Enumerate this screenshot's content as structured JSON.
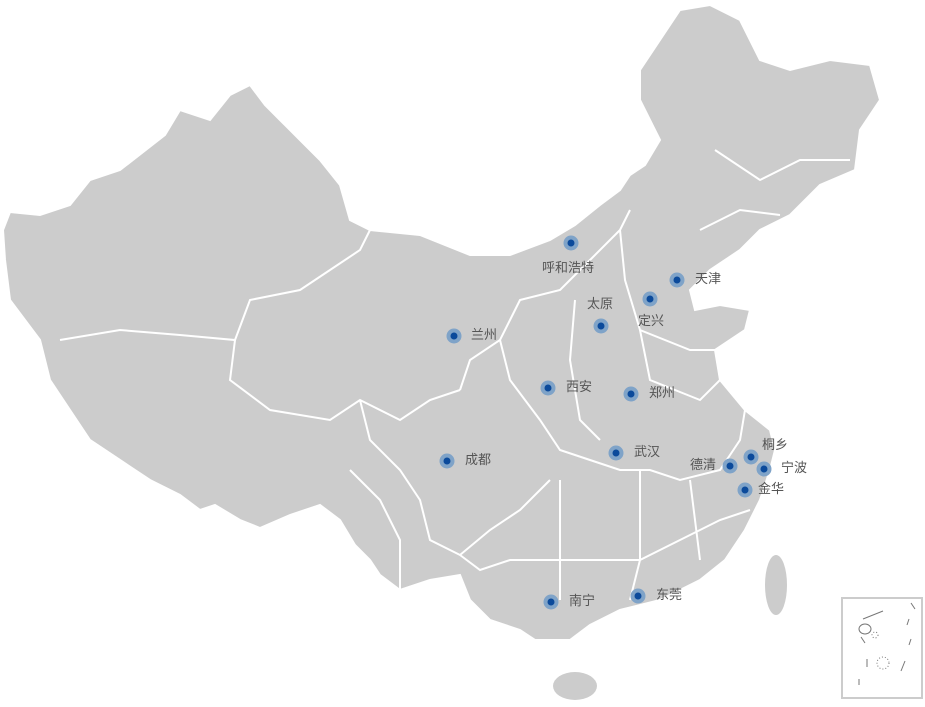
{
  "map": {
    "colors": {
      "land": "#cccccc",
      "border": "#ffffff",
      "marker_halo": "#7fa3c8",
      "marker_core": "#0b4a9b",
      "label": "#555555"
    },
    "cities": [
      {
        "name": "呼和浩特",
        "lng": 111.75,
        "lat": 40.84
      },
      {
        "name": "天津",
        "lng": 117.2,
        "lat": 39.13
      },
      {
        "name": "太原",
        "lng": 112.55,
        "lat": 37.87
      },
      {
        "name": "定兴",
        "lng": 115.8,
        "lat": 39.27
      },
      {
        "name": "兰州",
        "lng": 103.82,
        "lat": 36.06
      },
      {
        "name": "西安",
        "lng": 108.94,
        "lat": 34.34
      },
      {
        "name": "郑州",
        "lng": 113.65,
        "lat": 34.76
      },
      {
        "name": "成都",
        "lng": 104.07,
        "lat": 30.67
      },
      {
        "name": "武汉",
        "lng": 114.31,
        "lat": 30.52
      },
      {
        "name": "桐乡",
        "lng": 120.56,
        "lat": 30.63
      },
      {
        "name": "德清",
        "lng": 119.97,
        "lat": 30.54
      },
      {
        "name": "宁波",
        "lng": 121.55,
        "lat": 29.87
      },
      {
        "name": "金华",
        "lng": 119.65,
        "lat": 29.08
      },
      {
        "name": "南宁",
        "lng": 108.33,
        "lat": 22.84
      },
      {
        "name": "东莞",
        "lng": 113.75,
        "lat": 23.04
      }
    ],
    "inset": "south-china-sea-islands"
  }
}
